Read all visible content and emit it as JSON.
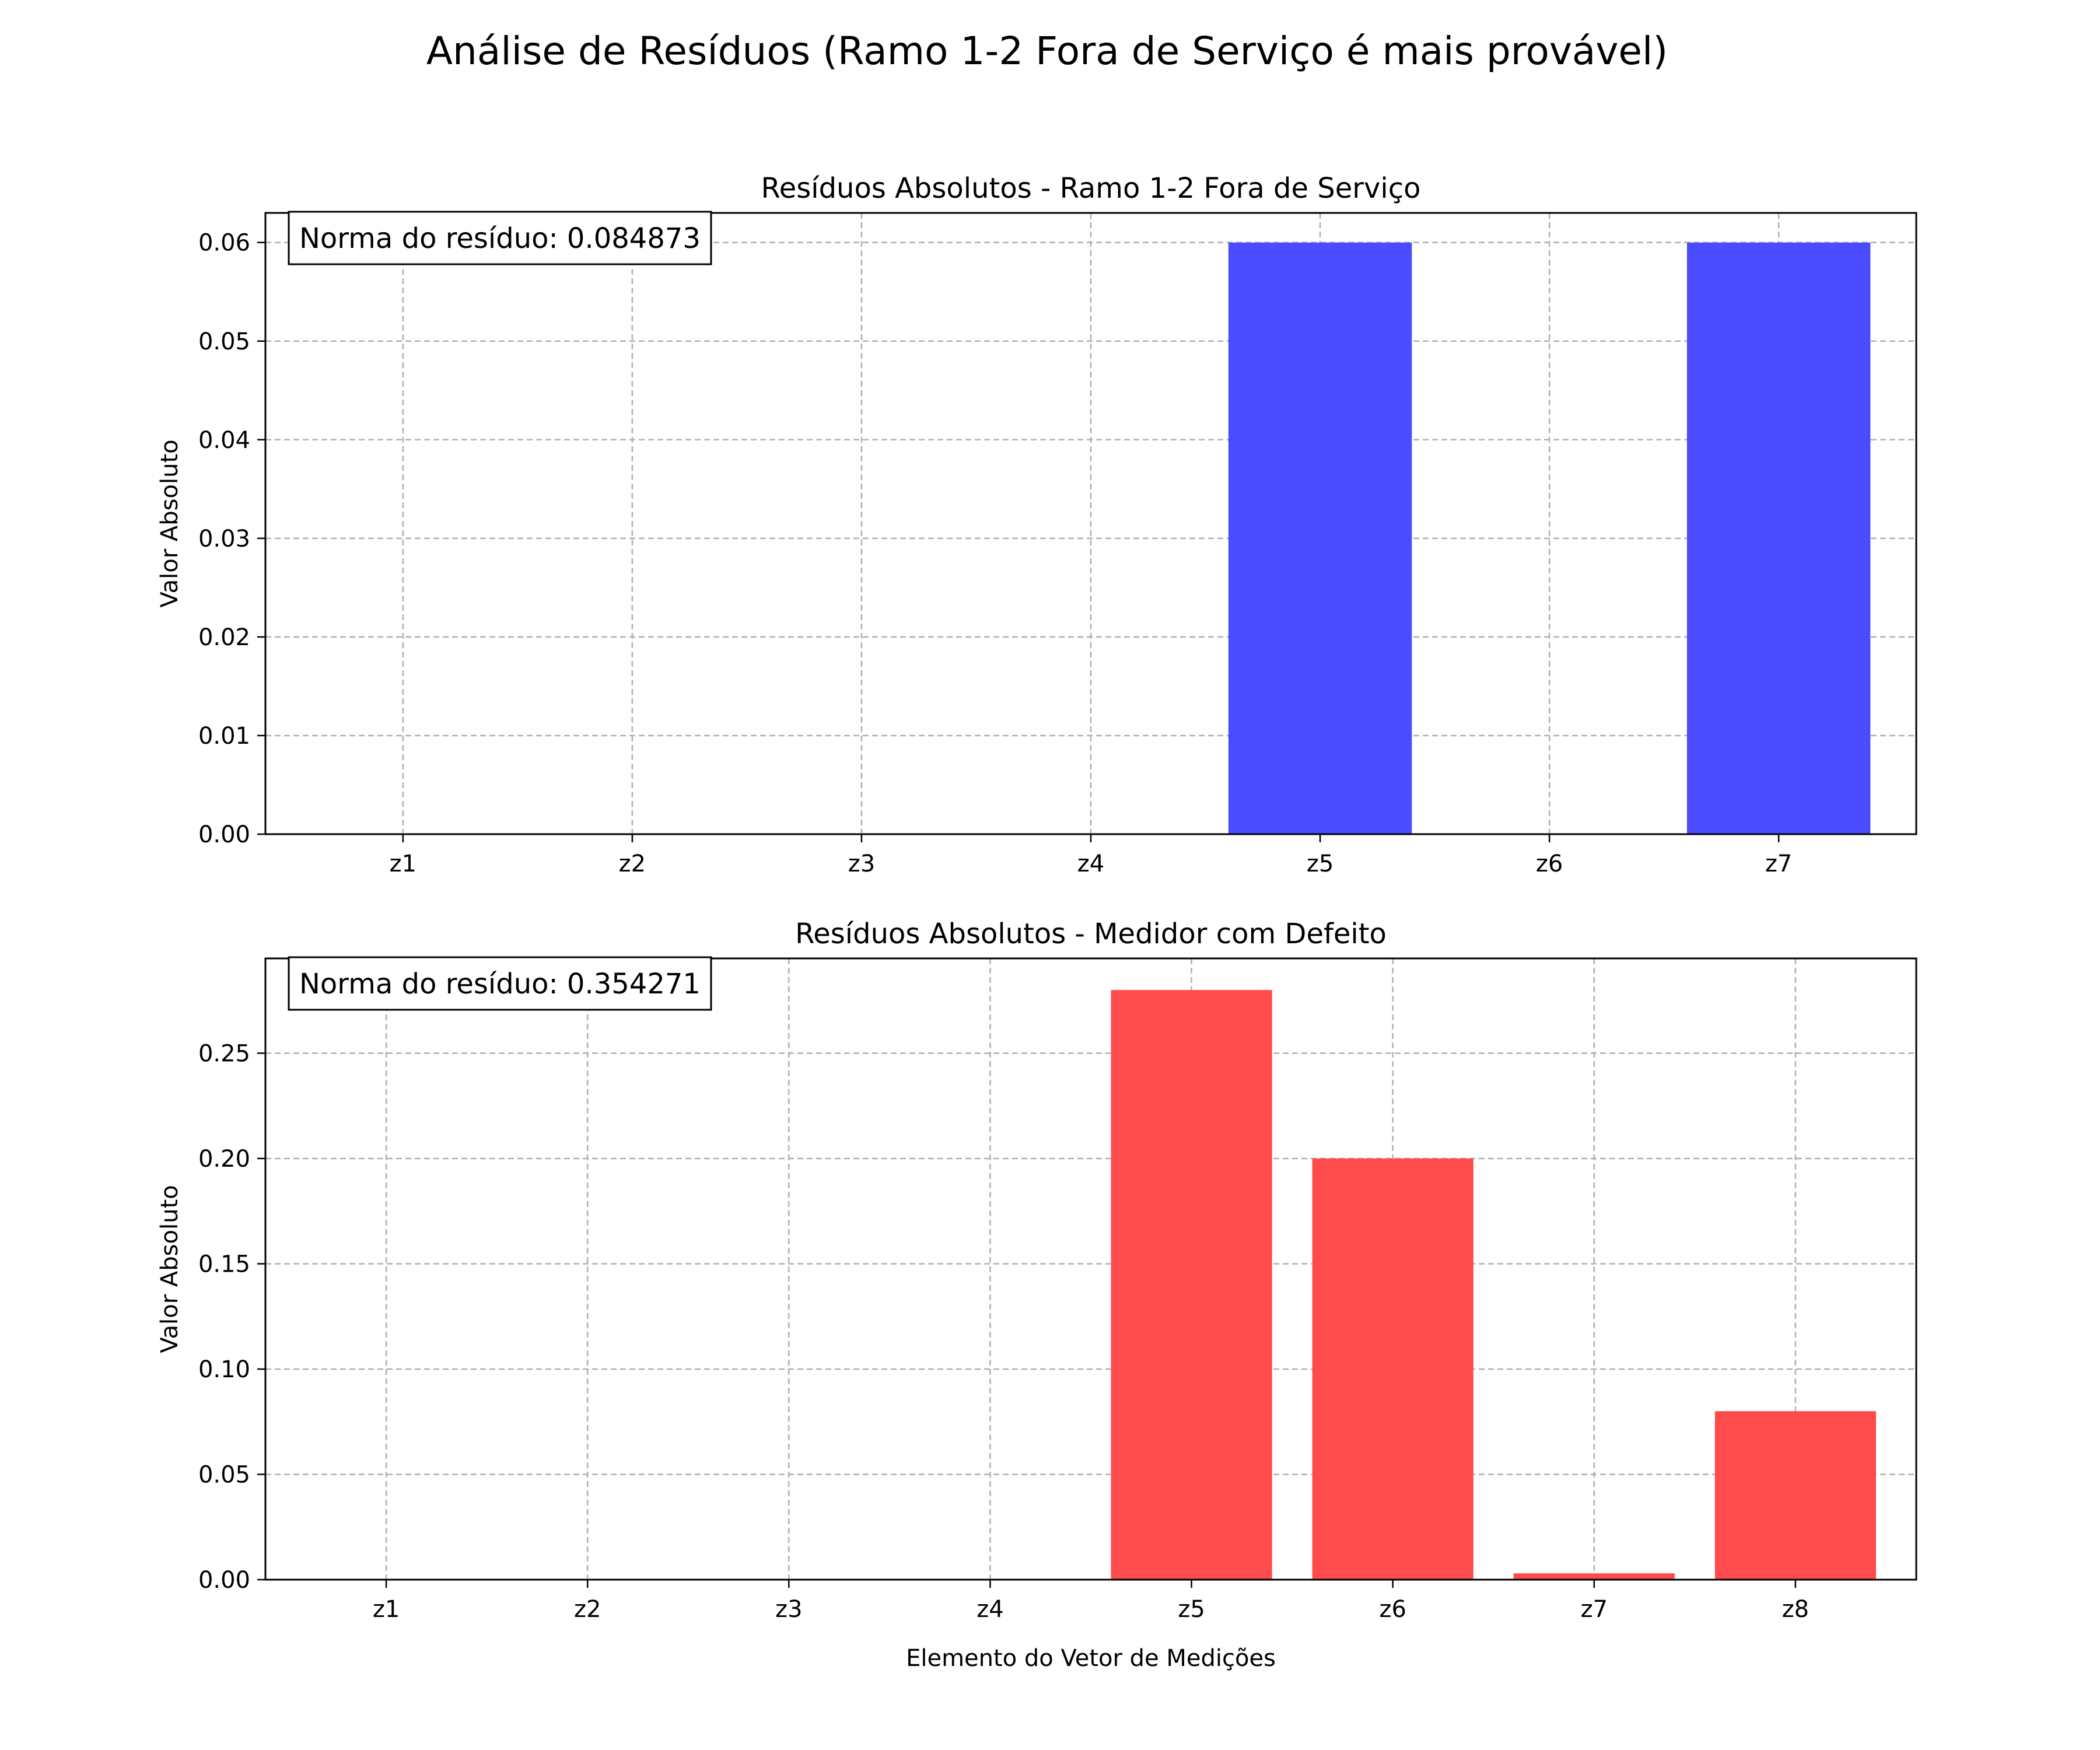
{
  "figure": {
    "title": "Análise de Resíduos (Ramo 1-2 Fora de Serviço é mais provável)"
  },
  "chart_data": [
    {
      "type": "bar",
      "title": "Resíduos Absolutos - Ramo 1-2 Fora de Serviço",
      "xlabel": "",
      "ylabel": "Valor Absoluto",
      "categories": [
        "z1",
        "z2",
        "z3",
        "z4",
        "z5",
        "z6",
        "z7"
      ],
      "values": [
        0,
        0,
        0,
        0,
        0.06,
        0,
        0.06
      ],
      "color": "#4b4bff",
      "ylim": [
        0,
        0.063
      ],
      "yticks": [
        "0.00",
        "0.01",
        "0.02",
        "0.03",
        "0.04",
        "0.05",
        "0.06"
      ],
      "grid": true,
      "annotation": "Norma do resíduo: 0.084873"
    },
    {
      "type": "bar",
      "title": "Resíduos Absolutos - Medidor com Defeito",
      "xlabel": "Elemento do Vetor de Medições",
      "ylabel": "Valor Absoluto",
      "categories": [
        "z1",
        "z2",
        "z3",
        "z4",
        "z5",
        "z6",
        "z7",
        "z8"
      ],
      "values": [
        0,
        0,
        0,
        0,
        0.28,
        0.2,
        0.003,
        0.08
      ],
      "color": "#ff4b4b",
      "ylim": [
        0,
        0.295
      ],
      "yticks": [
        "0.00",
        "0.05",
        "0.10",
        "0.15",
        "0.20",
        "0.25"
      ],
      "grid": true,
      "annotation": "Norma do resíduo: 0.354271"
    }
  ]
}
